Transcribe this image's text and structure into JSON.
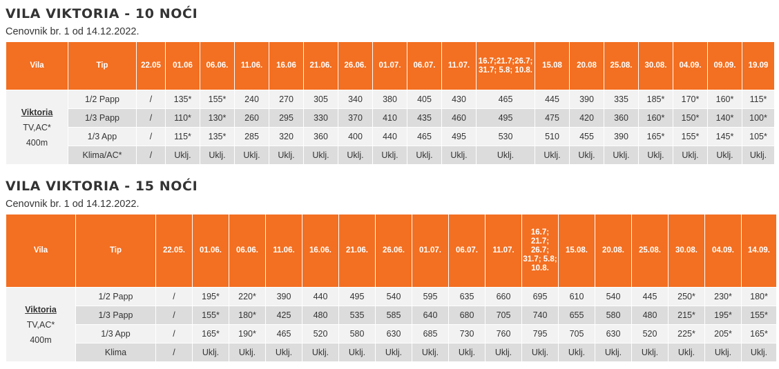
{
  "tables": [
    {
      "title": "VILA VIKTORIA - 10 NOĆI",
      "subtitle": "Cenovnik br. 1 od 14.12.2022.",
      "headers": [
        "Vila",
        "Tip",
        "22.05",
        "01.06",
        "06.06.",
        "11.06.",
        "16.06",
        "21.06.",
        "26.06.",
        "01.07.",
        "06.07.",
        "11.07.",
        "16.7;21.7;26.7; 31.7; 5.8; 10.8.",
        "15.08",
        "20.08",
        "25.08.",
        "30.08.",
        "04.09.",
        "09.09.",
        "19.09"
      ],
      "vila": {
        "name": "Viktoria",
        "line2": "TV,AC*",
        "line3": "400m"
      },
      "rows": [
        {
          "tip": "1/2 Papp",
          "cells": [
            "/",
            "135*",
            "155*",
            "240",
            "270",
            "305",
            "340",
            "380",
            "405",
            "430",
            "465",
            "445",
            "390",
            "335",
            "185*",
            "170*",
            "160*",
            "115*"
          ]
        },
        {
          "tip": "1/3 Papp",
          "cells": [
            "/",
            "110*",
            "130*",
            "260",
            "295",
            "330",
            "370",
            "410",
            "435",
            "460",
            "495",
            "475",
            "420",
            "360",
            "160*",
            "150*",
            "140*",
            "100*"
          ]
        },
        {
          "tip": "1/3 App",
          "cells": [
            "/",
            "115*",
            "135*",
            "285",
            "320",
            "360",
            "400",
            "440",
            "465",
            "495",
            "530",
            "510",
            "455",
            "390",
            "165*",
            "155*",
            "145*",
            "105*"
          ]
        },
        {
          "tip": "Klima/AC*",
          "cells": [
            "/",
            "Uklj.",
            "Uklj.",
            "Uklj.",
            "Uklj.",
            "Uklj.",
            "Uklj.",
            "Uklj.",
            "Uklj.",
            "Uklj.",
            "Uklj.",
            "Uklj.",
            "Uklj.",
            "Uklj.",
            "Uklj.",
            "Uklj.",
            "Uklj.",
            "Uklj."
          ]
        }
      ]
    },
    {
      "title": "VILA VIKTORIA - 15 NOĆI",
      "subtitle": "Cenovnik br. 1 od 14.12.2022.",
      "headers": [
        "Vila",
        "Tip",
        "22.05.",
        "01.06.",
        "06.06.",
        "11.06.",
        "16.06.",
        "21.06.",
        "26.06.",
        "01.07.",
        "06.07.",
        "11.07.",
        "16.7; 21.7; 26.7; 31.7; 5.8; 10.8.",
        "15.08.",
        "20.08.",
        "25.08.",
        "30.08.",
        "04.09.",
        "14.09."
      ],
      "vila": {
        "name": "Viktoria",
        "line2": "TV,AC*",
        "line3": "400m"
      },
      "rows": [
        {
          "tip": "1/2 Papp",
          "cells": [
            "/",
            "195*",
            "220*",
            "390",
            "440",
            "495",
            "540",
            "595",
            "635",
            "660",
            "695",
            "610",
            "540",
            "445",
            "250*",
            "230*",
            "180*"
          ]
        },
        {
          "tip": "1/3 Papp",
          "cells": [
            "/",
            "155*",
            "180*",
            "425",
            "480",
            "535",
            "585",
            "640",
            "680",
            "705",
            "740",
            "655",
            "580",
            "480",
            "215*",
            "195*",
            "155*"
          ]
        },
        {
          "tip": "1/3 App",
          "cells": [
            "/",
            "165*",
            "190*",
            "465",
            "520",
            "580",
            "630",
            "685",
            "730",
            "760",
            "795",
            "705",
            "630",
            "520",
            "225*",
            "205*",
            "165*"
          ]
        },
        {
          "tip": "Klima",
          "cells": [
            "/",
            "Uklj.",
            "Uklj.",
            "Uklj.",
            "Uklj.",
            "Uklj.",
            "Uklj.",
            "Uklj.",
            "Uklj.",
            "Uklj.",
            "Uklj.",
            "Uklj.",
            "Uklj.",
            "Uklj.",
            "Uklj.",
            "Uklj.",
            "Uklj."
          ]
        }
      ]
    }
  ]
}
